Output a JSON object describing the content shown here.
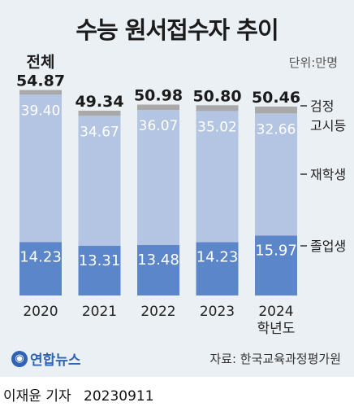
{
  "header": {
    "title": "수능 원서접수자 추이",
    "unit": "단위:만명"
  },
  "source": "자료: 한국교육과정평가원",
  "logo_text": "연합뉴스",
  "footer": {
    "reporter": "이재윤 기자",
    "date": "20230911"
  },
  "colors": {
    "panel_bg": "#eaf0f4",
    "graduates": "#5b86c9",
    "repeaters": "#b3c5e2",
    "ged": "#a9a9a9",
    "text_dark": "#1b1b1b"
  },
  "chart_data": {
    "type": "bar",
    "stacked": true,
    "categories": [
      "2020",
      "2021",
      "2022",
      "2023",
      "2024"
    ],
    "category_suffix_last": "학년도",
    "total_prefix": "전체",
    "totals": [
      54.87,
      49.34,
      50.98,
      50.8,
      50.46
    ],
    "series": [
      {
        "name": "졸업생",
        "values": [
          14.23,
          13.31,
          13.48,
          14.23,
          15.97
        ]
      },
      {
        "name": "재학생",
        "values": [
          39.4,
          34.67,
          36.07,
          35.02,
          32.66
        ]
      },
      {
        "name": "검정 고시등",
        "values": [
          1.24,
          1.36,
          1.43,
          1.55,
          1.83
        ]
      }
    ],
    "value_labels": {
      "졸업생": [
        "14.23",
        "13.31",
        "13.48",
        "14.23",
        "15.97"
      ],
      "재학생": [
        "39.40",
        "34.67",
        "36.07",
        "35.02",
        "32.66"
      ],
      "totals": [
        "54.87",
        "49.34",
        "50.98",
        "50.80",
        "50.46"
      ]
    },
    "legend": [
      "검정",
      "고시등",
      "재학생",
      "졸업생"
    ],
    "legend_placement": "right",
    "grid": false
  }
}
